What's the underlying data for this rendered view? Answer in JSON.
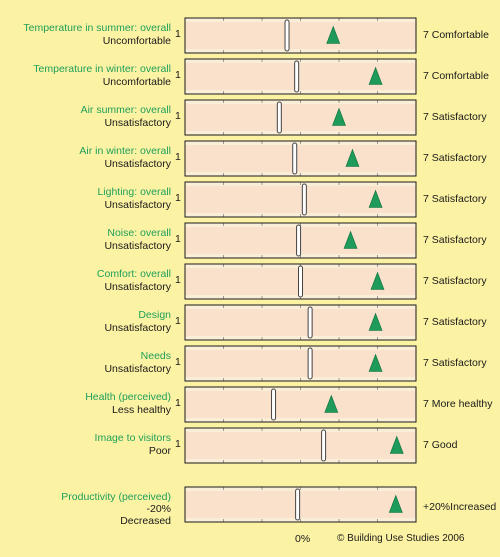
{
  "chart_data": {
    "type": "range-marker",
    "scale_min": 1,
    "scale_max": 7,
    "rows": [
      {
        "title": "Temperature in summer: overall",
        "low_label": "Uncomfortable",
        "low_num": "1",
        "high_label": "7  Comfortable",
        "benchmark": 3.65,
        "value": 4.85
      },
      {
        "title": "Temperature in winter: overall",
        "low_label": "Uncomfortable",
        "low_num": "1",
        "high_label": "7  Comfortable",
        "benchmark": 3.9,
        "value": 5.95
      },
      {
        "title": "Air summer: overall",
        "low_label": "Unsatisfactory",
        "low_num": "1",
        "high_label": "7  Satisfactory",
        "benchmark": 3.45,
        "value": 5.0
      },
      {
        "title": "Air in winter: overall",
        "low_label": "Unsatisfactory",
        "low_num": "1",
        "high_label": "7  Satisfactory",
        "benchmark": 3.85,
        "value": 5.35
      },
      {
        "title": "Lighting: overall",
        "low_label": "Unsatisfactory",
        "low_num": "1",
        "high_label": "7  Satisfactory",
        "benchmark": 4.1,
        "value": 5.95
      },
      {
        "title": "Noise: overall",
        "low_label": "Unsatisfactory",
        "low_num": "1",
        "high_label": "7  Satisfactory",
        "benchmark": 3.95,
        "value": 5.3
      },
      {
        "title": "Comfort: overall",
        "low_label": "Unsatisfactory",
        "low_num": "1",
        "high_label": "7  Satisfactory",
        "benchmark": 4.0,
        "value": 6.0
      },
      {
        "title": "Design",
        "low_label": "Unsatisfactory",
        "low_num": "1",
        "high_label": "7  Satisfactory",
        "benchmark": 4.25,
        "value": 5.95
      },
      {
        "title": "Needs",
        "low_label": "Unsatisfactory",
        "low_num": "1",
        "high_label": "7  Satisfactory",
        "benchmark": 4.25,
        "value": 5.95
      },
      {
        "title": "Health (perceived)",
        "low_label": "Less healthy",
        "low_num": "1",
        "high_label": "7  More healthy",
        "benchmark": 3.3,
        "value": 4.8
      },
      {
        "title": "Image to visitors",
        "low_label": "Poor",
        "low_num": "1",
        "high_label": "7  Good",
        "benchmark": 4.6,
        "value": 6.5
      }
    ],
    "productivity": {
      "title": "Productivity (perceived)",
      "low_value": "-20%",
      "low_label": "Decreased",
      "high_value": "+20%",
      "high_label": "Increased",
      "min": -20,
      "max": 20,
      "benchmark": -0.5,
      "value": 16.5,
      "zero_label": "0%"
    },
    "credit": "© Building Use Studies 2006",
    "grid": true,
    "colors": {
      "band": "#f9e1cc",
      "frame": "#1a1a1a",
      "grid": "#9a9a9a",
      "marker": "#1e9b5a",
      "title_text": "#1fa05a",
      "background": "#fcf2a4"
    }
  }
}
